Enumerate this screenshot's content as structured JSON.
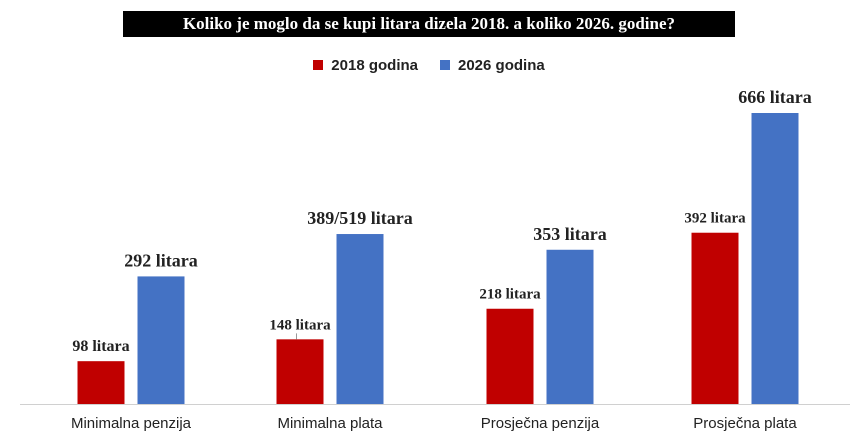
{
  "chart_data": {
    "type": "bar",
    "title": "Koliko je moglo da se kupi litara dizela 2018. a koliko 2026. godine?",
    "categories": [
      "Minimalna penzija",
      "Minimalna plata",
      "Prosječna penzija",
      "Prosječna plata"
    ],
    "series": [
      {
        "name": "2018 godina",
        "color": "#c00000",
        "values": [
          98,
          148,
          218,
          392
        ],
        "labels": [
          "98 litara",
          "148 litara",
          "218 litara",
          "392 litara"
        ]
      },
      {
        "name": "2026 godina",
        "color": "#4472c4",
        "values": [
          292,
          389,
          353,
          666
        ],
        "labels": [
          "292 litara",
          "389/519 litara",
          "353 litara",
          "666 litara"
        ]
      }
    ],
    "ylim": [
      0,
      700
    ],
    "grid": false,
    "legend_position": "top-center"
  }
}
